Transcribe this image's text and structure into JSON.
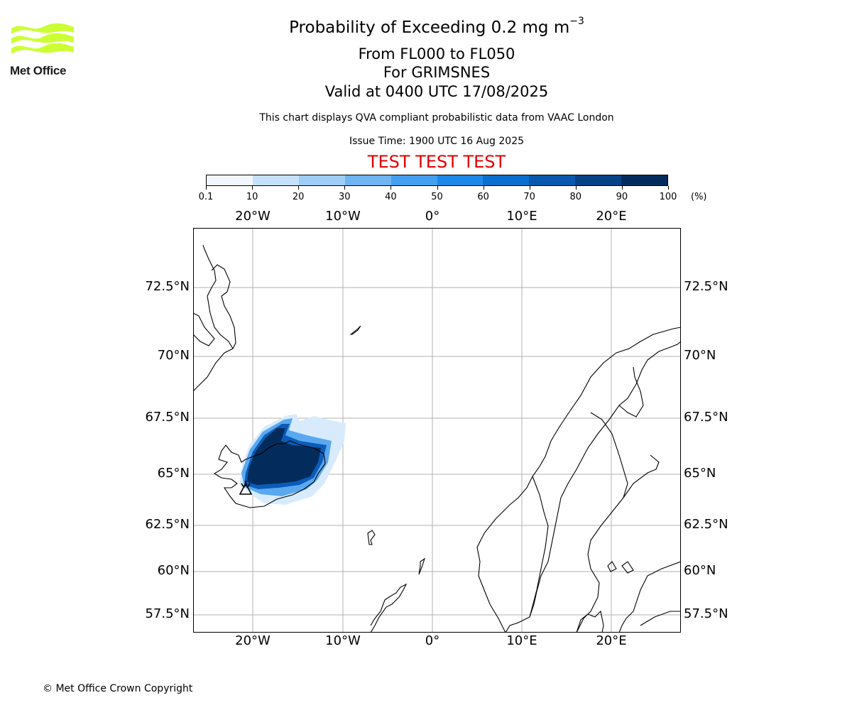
{
  "logo": {
    "text": "Met Office",
    "color": "#ccff33"
  },
  "title": {
    "main_prefix": "Probability of Exceeding 0.2 mg m",
    "main_exponent": "−3",
    "levels": "From FL000 to FL050",
    "volcano": "For GRIMSNES",
    "valid": "Valid at 0400 UTC 17/08/2025",
    "description": "This chart displays QVA compliant probabilistic data from VAAC London",
    "issue_time": "Issue Time: 1900 UTC 16 Aug 2025",
    "test_banner": "TEST TEST TEST"
  },
  "colorbar": {
    "ticks": [
      "0.1",
      "10",
      "20",
      "30",
      "40",
      "50",
      "60",
      "70",
      "80",
      "90",
      "100"
    ],
    "unit": "(%)",
    "colors": [
      "#f0f7ff",
      "#c6e1fb",
      "#9ecdf7",
      "#6fb4f3",
      "#43a0f0",
      "#1e88e8",
      "#0a6fd0",
      "#0858ad",
      "#064288",
      "#032c5c"
    ]
  },
  "map": {
    "lon_labels": [
      "20°W",
      "10°W",
      "0°",
      "10°E",
      "20°E"
    ],
    "lat_labels": [
      "72.5°N",
      "70°N",
      "67.5°N",
      "65°N",
      "62.5°N",
      "60°N",
      "57.5°N"
    ],
    "grid_color": "#b0b0b0"
  },
  "copyright": "© Met Office Crown Copyright"
}
